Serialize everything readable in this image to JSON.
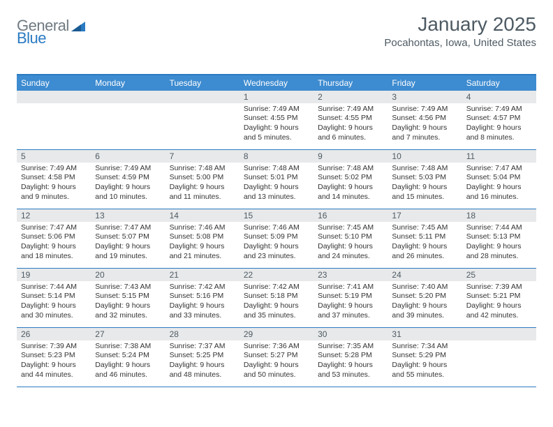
{
  "logo": {
    "text1": "General",
    "text2": "Blue",
    "color1": "#6f7a82",
    "color2": "#2a7ac2"
  },
  "title": "January 2025",
  "location": "Pocahontas, Iowa, United States",
  "colors": {
    "accent": "#2a7ac2",
    "header_bg": "#3d8bd0",
    "header_fg": "#ffffff",
    "daybar_bg": "#e8e9ea",
    "text": "#4d5a63"
  },
  "daysOfWeek": [
    "Sunday",
    "Monday",
    "Tuesday",
    "Wednesday",
    "Thursday",
    "Friday",
    "Saturday"
  ],
  "weeks": [
    [
      {
        "n": "",
        "lines": []
      },
      {
        "n": "",
        "lines": []
      },
      {
        "n": "",
        "lines": []
      },
      {
        "n": "1",
        "lines": [
          "Sunrise: 7:49 AM",
          "Sunset: 4:55 PM",
          "Daylight: 9 hours",
          "and 5 minutes."
        ]
      },
      {
        "n": "2",
        "lines": [
          "Sunrise: 7:49 AM",
          "Sunset: 4:55 PM",
          "Daylight: 9 hours",
          "and 6 minutes."
        ]
      },
      {
        "n": "3",
        "lines": [
          "Sunrise: 7:49 AM",
          "Sunset: 4:56 PM",
          "Daylight: 9 hours",
          "and 7 minutes."
        ]
      },
      {
        "n": "4",
        "lines": [
          "Sunrise: 7:49 AM",
          "Sunset: 4:57 PM",
          "Daylight: 9 hours",
          "and 8 minutes."
        ]
      }
    ],
    [
      {
        "n": "5",
        "lines": [
          "Sunrise: 7:49 AM",
          "Sunset: 4:58 PM",
          "Daylight: 9 hours",
          "and 9 minutes."
        ]
      },
      {
        "n": "6",
        "lines": [
          "Sunrise: 7:49 AM",
          "Sunset: 4:59 PM",
          "Daylight: 9 hours",
          "and 10 minutes."
        ]
      },
      {
        "n": "7",
        "lines": [
          "Sunrise: 7:48 AM",
          "Sunset: 5:00 PM",
          "Daylight: 9 hours",
          "and 11 minutes."
        ]
      },
      {
        "n": "8",
        "lines": [
          "Sunrise: 7:48 AM",
          "Sunset: 5:01 PM",
          "Daylight: 9 hours",
          "and 13 minutes."
        ]
      },
      {
        "n": "9",
        "lines": [
          "Sunrise: 7:48 AM",
          "Sunset: 5:02 PM",
          "Daylight: 9 hours",
          "and 14 minutes."
        ]
      },
      {
        "n": "10",
        "lines": [
          "Sunrise: 7:48 AM",
          "Sunset: 5:03 PM",
          "Daylight: 9 hours",
          "and 15 minutes."
        ]
      },
      {
        "n": "11",
        "lines": [
          "Sunrise: 7:47 AM",
          "Sunset: 5:04 PM",
          "Daylight: 9 hours",
          "and 16 minutes."
        ]
      }
    ],
    [
      {
        "n": "12",
        "lines": [
          "Sunrise: 7:47 AM",
          "Sunset: 5:06 PM",
          "Daylight: 9 hours",
          "and 18 minutes."
        ]
      },
      {
        "n": "13",
        "lines": [
          "Sunrise: 7:47 AM",
          "Sunset: 5:07 PM",
          "Daylight: 9 hours",
          "and 19 minutes."
        ]
      },
      {
        "n": "14",
        "lines": [
          "Sunrise: 7:46 AM",
          "Sunset: 5:08 PM",
          "Daylight: 9 hours",
          "and 21 minutes."
        ]
      },
      {
        "n": "15",
        "lines": [
          "Sunrise: 7:46 AM",
          "Sunset: 5:09 PM",
          "Daylight: 9 hours",
          "and 23 minutes."
        ]
      },
      {
        "n": "16",
        "lines": [
          "Sunrise: 7:45 AM",
          "Sunset: 5:10 PM",
          "Daylight: 9 hours",
          "and 24 minutes."
        ]
      },
      {
        "n": "17",
        "lines": [
          "Sunrise: 7:45 AM",
          "Sunset: 5:11 PM",
          "Daylight: 9 hours",
          "and 26 minutes."
        ]
      },
      {
        "n": "18",
        "lines": [
          "Sunrise: 7:44 AM",
          "Sunset: 5:13 PM",
          "Daylight: 9 hours",
          "and 28 minutes."
        ]
      }
    ],
    [
      {
        "n": "19",
        "lines": [
          "Sunrise: 7:44 AM",
          "Sunset: 5:14 PM",
          "Daylight: 9 hours",
          "and 30 minutes."
        ]
      },
      {
        "n": "20",
        "lines": [
          "Sunrise: 7:43 AM",
          "Sunset: 5:15 PM",
          "Daylight: 9 hours",
          "and 32 minutes."
        ]
      },
      {
        "n": "21",
        "lines": [
          "Sunrise: 7:42 AM",
          "Sunset: 5:16 PM",
          "Daylight: 9 hours",
          "and 33 minutes."
        ]
      },
      {
        "n": "22",
        "lines": [
          "Sunrise: 7:42 AM",
          "Sunset: 5:18 PM",
          "Daylight: 9 hours",
          "and 35 minutes."
        ]
      },
      {
        "n": "23",
        "lines": [
          "Sunrise: 7:41 AM",
          "Sunset: 5:19 PM",
          "Daylight: 9 hours",
          "and 37 minutes."
        ]
      },
      {
        "n": "24",
        "lines": [
          "Sunrise: 7:40 AM",
          "Sunset: 5:20 PM",
          "Daylight: 9 hours",
          "and 39 minutes."
        ]
      },
      {
        "n": "25",
        "lines": [
          "Sunrise: 7:39 AM",
          "Sunset: 5:21 PM",
          "Daylight: 9 hours",
          "and 42 minutes."
        ]
      }
    ],
    [
      {
        "n": "26",
        "lines": [
          "Sunrise: 7:39 AM",
          "Sunset: 5:23 PM",
          "Daylight: 9 hours",
          "and 44 minutes."
        ]
      },
      {
        "n": "27",
        "lines": [
          "Sunrise: 7:38 AM",
          "Sunset: 5:24 PM",
          "Daylight: 9 hours",
          "and 46 minutes."
        ]
      },
      {
        "n": "28",
        "lines": [
          "Sunrise: 7:37 AM",
          "Sunset: 5:25 PM",
          "Daylight: 9 hours",
          "and 48 minutes."
        ]
      },
      {
        "n": "29",
        "lines": [
          "Sunrise: 7:36 AM",
          "Sunset: 5:27 PM",
          "Daylight: 9 hours",
          "and 50 minutes."
        ]
      },
      {
        "n": "30",
        "lines": [
          "Sunrise: 7:35 AM",
          "Sunset: 5:28 PM",
          "Daylight: 9 hours",
          "and 53 minutes."
        ]
      },
      {
        "n": "31",
        "lines": [
          "Sunrise: 7:34 AM",
          "Sunset: 5:29 PM",
          "Daylight: 9 hours",
          "and 55 minutes."
        ]
      },
      {
        "n": "",
        "lines": []
      }
    ]
  ]
}
